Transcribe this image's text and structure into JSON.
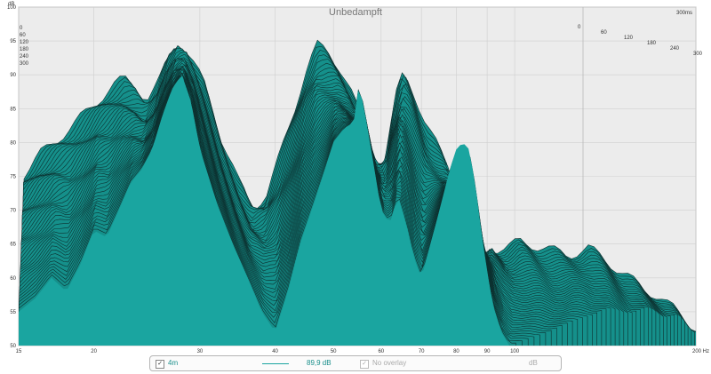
{
  "chart_data": {
    "type": "area",
    "title": "Unbedampft",
    "ylabel": "dB",
    "xlabel": "",
    "x_unit": "Hz",
    "x_scale": "log",
    "xlim": [
      15,
      200
    ],
    "ylim": [
      50,
      100
    ],
    "x_ticks": [
      "15",
      "20",
      "30",
      "40",
      "50",
      "60",
      "70",
      "80",
      "90",
      "100",
      "200 Hz"
    ],
    "y_ticks": [
      "50",
      "55",
      "60",
      "65",
      "70",
      "75",
      "80",
      "85",
      "90",
      "95",
      "100"
    ],
    "time_axis_unit": "ms",
    "time_slices_ms": [
      0,
      60,
      120,
      180,
      240,
      300
    ],
    "time_labels": [
      "0",
      "60",
      "120",
      "180",
      "240",
      "300",
      "300ms"
    ],
    "grid": true,
    "fill_color": "#1aa5a0",
    "line_color": "#0d2f2e",
    "front_series": {
      "x": [
        15,
        16,
        17,
        18,
        19,
        20,
        21,
        22,
        23,
        24,
        25,
        26,
        27,
        28,
        29,
        30,
        32,
        34,
        36,
        38,
        40,
        42,
        44,
        46,
        48,
        50,
        52,
        54,
        55,
        56,
        58,
        60,
        62,
        64,
        66,
        68,
        70,
        72,
        74,
        76,
        78,
        80,
        82,
        84,
        86,
        88,
        90,
        92,
        95,
        98
      ],
      "db": [
        55,
        57,
        60,
        58,
        62,
        67,
        66,
        70,
        74,
        76,
        79,
        84,
        88,
        90,
        86,
        79,
        71,
        65,
        60,
        55,
        52,
        58,
        65,
        70,
        75,
        80,
        82,
        83,
        88,
        86,
        78,
        70,
        68,
        72,
        68,
        63,
        60,
        64,
        68,
        72,
        76,
        79,
        80,
        79,
        74,
        67,
        61,
        56,
        52,
        50
      ]
    },
    "back_series": {
      "x": [
        15,
        16,
        17,
        18,
        19,
        20,
        21,
        22,
        23,
        24,
        25,
        26,
        27,
        28,
        30,
        32,
        34,
        36,
        38,
        40,
        42,
        44,
        46,
        48,
        50,
        52,
        55,
        58,
        60,
        62,
        64,
        66,
        68,
        70,
        72,
        74,
        76,
        78,
        80,
        82,
        84,
        86,
        88,
        90,
        95,
        100,
        110,
        120,
        130,
        140,
        150,
        160,
        170,
        180,
        190,
        200
      ],
      "db": [
        73,
        76,
        78,
        80,
        82,
        84,
        86,
        87,
        86,
        84,
        86,
        90,
        92,
        91,
        86,
        78,
        72,
        68,
        70,
        76,
        82,
        88,
        92,
        91,
        89,
        86,
        80,
        73,
        76,
        84,
        88,
        86,
        83,
        80,
        78,
        76,
        74,
        70,
        66,
        62,
        59,
        56,
        60,
        62,
        62,
        63,
        62,
        61,
        62,
        60,
        58,
        56,
        55,
        53,
        51,
        50
      ]
    }
  },
  "legend": {
    "series_label": "4m",
    "series_value": "89,9 dB",
    "overlay_label": "No overlay",
    "unit": "dB"
  }
}
